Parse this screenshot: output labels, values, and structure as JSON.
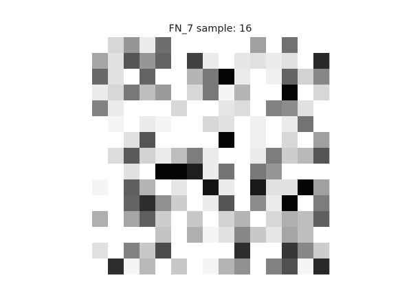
{
  "chart_data": {
    "type": "heatmap",
    "title": "FN_7 sample: 16",
    "colormap": "gray_r",
    "value_range": [
      0,
      255
    ],
    "rows": 15,
    "cols": 15,
    "grid": false,
    "axes_visible": false,
    "values": [
      [
        0,
        40,
        105,
        20,
        145,
        0,
        0,
        0,
        0,
        0,
        95,
        0,
        142,
        0,
        0
      ],
      [
        90,
        30,
        170,
        105,
        155,
        0,
        190,
        20,
        0,
        25,
        30,
        20,
        30,
        0,
        215
      ],
      [
        150,
        30,
        0,
        155,
        0,
        0,
        75,
        135,
        250,
        20,
        0,
        15,
        155,
        45,
        120
      ],
      [
        20,
        40,
        135,
        65,
        100,
        0,
        40,
        135,
        10,
        75,
        0,
        0,
        250,
        0,
        40
      ],
      [
        125,
        20,
        0,
        0,
        0,
        40,
        0,
        0,
        25,
        35,
        0,
        125,
        115,
        30,
        0
      ],
      [
        0,
        10,
        0,
        20,
        10,
        0,
        0,
        40,
        30,
        0,
        15,
        0,
        20,
        140,
        0
      ],
      [
        0,
        0,
        30,
        170,
        0,
        0,
        0,
        0,
        250,
        0,
        15,
        0,
        40,
        0,
        95
      ],
      [
        0,
        35,
        165,
        45,
        20,
        65,
        130,
        20,
        0,
        0,
        20,
        130,
        50,
        70,
        170
      ],
      [
        0,
        0,
        30,
        0,
        250,
        250,
        225,
        20,
        140,
        0,
        135,
        105,
        0,
        0,
        0
      ],
      [
        10,
        0,
        160,
        75,
        0,
        25,
        0,
        235,
        20,
        0,
        230,
        30,
        30,
        250,
        95
      ],
      [
        0,
        0,
        155,
        210,
        110,
        50,
        0,
        20,
        170,
        0,
        115,
        20,
        250,
        0,
        130
      ],
      [
        80,
        0,
        90,
        160,
        50,
        0,
        55,
        0,
        45,
        75,
        0,
        40,
        80,
        65,
        160
      ],
      [
        0,
        0,
        0,
        0,
        60,
        0,
        80,
        10,
        30,
        120,
        55,
        25,
        90,
        65,
        0
      ],
      [
        30,
        0,
        125,
        55,
        180,
        0,
        0,
        0,
        0,
        210,
        0,
        0,
        200,
        120,
        50
      ],
      [
        0,
        210,
        10,
        70,
        0,
        55,
        0,
        10,
        75,
        110,
        0,
        125,
        175,
        10,
        215
      ]
    ]
  }
}
